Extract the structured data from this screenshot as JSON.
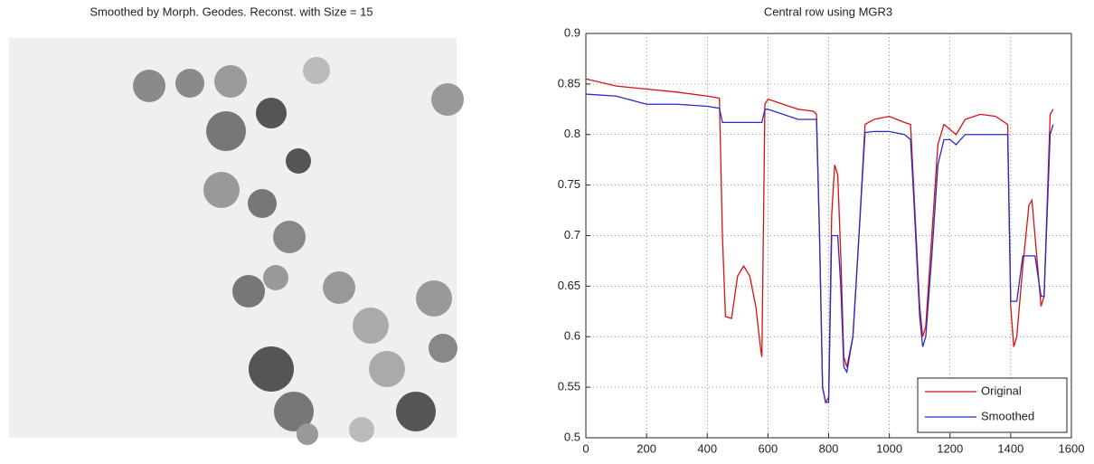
{
  "image_title": "Smoothed by Morph. Geodes. Reconst. with Size = 15",
  "chart_data": {
    "type": "line",
    "title": "Central row using MGR3",
    "x": [
      0,
      100,
      200,
      300,
      400,
      440,
      450,
      460,
      480,
      500,
      520,
      540,
      560,
      575,
      580,
      590,
      600,
      650,
      700,
      750,
      760,
      770,
      780,
      790,
      800,
      810,
      820,
      830,
      840,
      850,
      860,
      880,
      900,
      920,
      950,
      1000,
      1050,
      1070,
      1080,
      1100,
      1110,
      1120,
      1140,
      1160,
      1180,
      1200,
      1220,
      1250,
      1300,
      1350,
      1390,
      1400,
      1410,
      1420,
      1440,
      1460,
      1470,
      1480,
      1500,
      1510,
      1530,
      1540
    ],
    "series": [
      {
        "name": "Original",
        "color": "#d81010",
        "values": [
          0.855,
          0.848,
          0.845,
          0.842,
          0.838,
          0.836,
          0.7,
          0.62,
          0.618,
          0.66,
          0.67,
          0.66,
          0.63,
          0.59,
          0.58,
          0.83,
          0.835,
          0.83,
          0.825,
          0.823,
          0.82,
          0.7,
          0.55,
          0.535,
          0.54,
          0.72,
          0.77,
          0.76,
          0.68,
          0.58,
          0.57,
          0.6,
          0.7,
          0.81,
          0.815,
          0.818,
          0.812,
          0.81,
          0.75,
          0.63,
          0.6,
          0.61,
          0.7,
          0.79,
          0.81,
          0.805,
          0.8,
          0.815,
          0.82,
          0.818,
          0.81,
          0.63,
          0.59,
          0.6,
          0.67,
          0.73,
          0.735,
          0.7,
          0.63,
          0.64,
          0.82,
          0.825
        ]
      },
      {
        "name": "Smoothed",
        "color": "#2a2ac8",
        "values": [
          0.84,
          0.838,
          0.83,
          0.83,
          0.828,
          0.826,
          0.812,
          0.812,
          0.812,
          0.812,
          0.812,
          0.812,
          0.812,
          0.812,
          0.812,
          0.825,
          0.825,
          0.82,
          0.815,
          0.815,
          0.815,
          0.7,
          0.55,
          0.535,
          0.535,
          0.7,
          0.7,
          0.7,
          0.65,
          0.57,
          0.565,
          0.6,
          0.7,
          0.802,
          0.803,
          0.803,
          0.8,
          0.795,
          0.74,
          0.62,
          0.59,
          0.6,
          0.68,
          0.77,
          0.795,
          0.795,
          0.79,
          0.8,
          0.8,
          0.8,
          0.8,
          0.635,
          0.635,
          0.635,
          0.68,
          0.68,
          0.68,
          0.68,
          0.64,
          0.64,
          0.8,
          0.81
        ]
      }
    ],
    "xlim": [
      0,
      1600
    ],
    "xticks": [
      0,
      200,
      400,
      600,
      800,
      1000,
      1200,
      1400,
      1600
    ],
    "ylim": [
      0.5,
      0.9
    ],
    "yticks": [
      0.5,
      0.55,
      0.6,
      0.65,
      0.7,
      0.75,
      0.8,
      0.85,
      0.9
    ],
    "grid": true,
    "legend": "lower right"
  }
}
